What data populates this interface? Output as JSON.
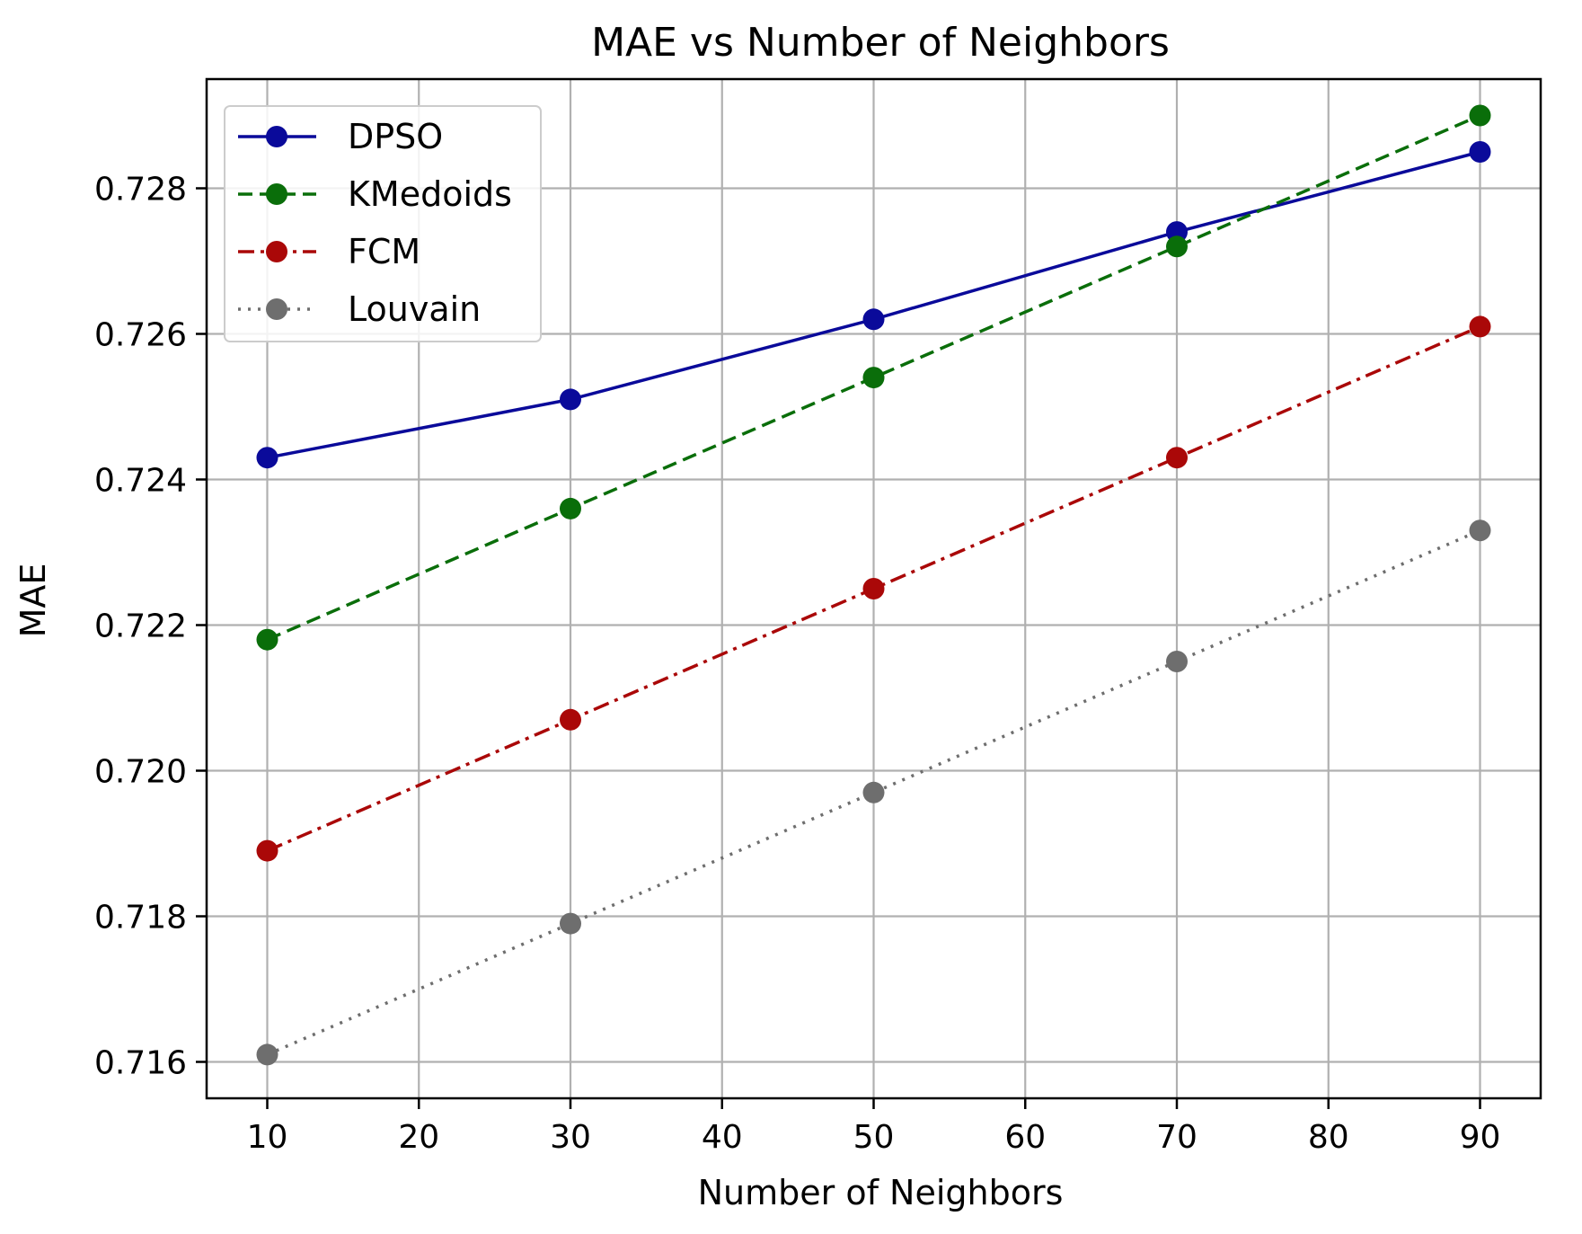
{
  "chart_data": {
    "type": "line",
    "title": "MAE vs Number of Neighbors",
    "xlabel": "Number of Neighbors",
    "ylabel": "MAE",
    "xlim": [
      6,
      94
    ],
    "ylim": [
      0.7155,
      0.7295
    ],
    "grid": true,
    "legend_position": "upper-left",
    "x_ticks": [
      10,
      20,
      30,
      40,
      50,
      60,
      70,
      80,
      90
    ],
    "x_tick_labels": [
      "10",
      "20",
      "30",
      "40",
      "50",
      "60",
      "70",
      "80",
      "90"
    ],
    "y_ticks": [
      0.716,
      0.718,
      0.72,
      0.722,
      0.724,
      0.726,
      0.728
    ],
    "y_tick_labels": [
      "0.716",
      "0.718",
      "0.720",
      "0.722",
      "0.724",
      "0.726",
      "0.728"
    ],
    "x": [
      10,
      30,
      50,
      70,
      90
    ],
    "series": [
      {
        "name": "DPSO",
        "values": [
          0.7243,
          0.7251,
          0.7262,
          0.7274,
          0.7285
        ],
        "color": "#0a0a9a",
        "line_style": "solid"
      },
      {
        "name": "KMedoids",
        "values": [
          0.7218,
          0.7236,
          0.7254,
          0.7272,
          0.729
        ],
        "color": "#0a6e0a",
        "line_style": "dashed"
      },
      {
        "name": "FCM",
        "values": [
          0.7189,
          0.7207,
          0.7225,
          0.7243,
          0.7261
        ],
        "color": "#aa0808",
        "line_style": "dashdot"
      },
      {
        "name": "Louvain",
        "values": [
          0.7161,
          0.7179,
          0.7197,
          0.7215,
          0.7233
        ],
        "color": "#6e6e6e",
        "line_style": "dotted"
      }
    ]
  }
}
